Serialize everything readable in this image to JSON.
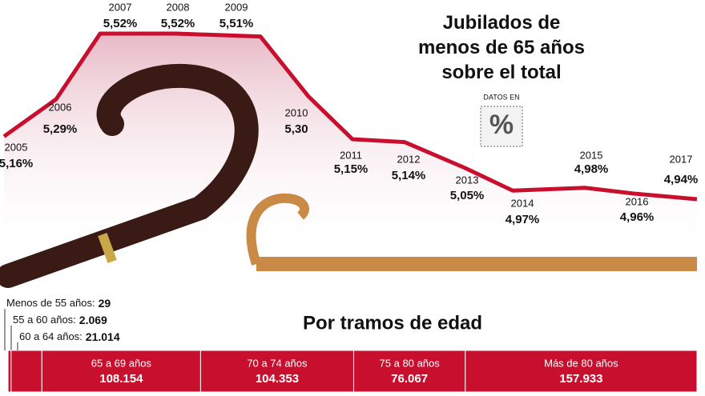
{
  "chart_data": [
    {
      "type": "line",
      "title": "Jubilados de menos de 65 años sobre el total",
      "annotation": "DATOS EN",
      "icon_label": "%",
      "categories": [
        "2005",
        "2006",
        "2007",
        "2008",
        "2009",
        "2010",
        "2011",
        "2012",
        "2013",
        "2014",
        "2015",
        "2016",
        "2017"
      ],
      "values": [
        5.16,
        5.29,
        5.52,
        5.52,
        5.51,
        5.3,
        5.15,
        5.14,
        5.05,
        4.97,
        4.98,
        4.96,
        4.94
      ],
      "value_labels": [
        "5,16%",
        "5,29%",
        "5,52%",
        "5,52%",
        "5,51%",
        "5,30",
        "5,15%",
        "5,14%",
        "5,05%",
        "4,97%",
        "4,98%",
        "4,96%",
        "4,94%"
      ],
      "color": "#c8102e"
    },
    {
      "type": "stacked-bar",
      "title": "Por tramos de edad",
      "categories": [
        "Menos de 55 años:",
        "55 a 60 años:",
        "60 a 64 años:",
        "65 a 69 años",
        "70 a 74 años",
        "75 a 80 años",
        "Más de 80 años"
      ],
      "values": [
        29,
        2069,
        21014,
        108154,
        104353,
        76067,
        157933
      ],
      "value_labels": [
        "29",
        "2.069",
        "21.014",
        "108.154",
        "104.353",
        "76.067",
        "157.933"
      ],
      "color": "#c8102e"
    }
  ]
}
